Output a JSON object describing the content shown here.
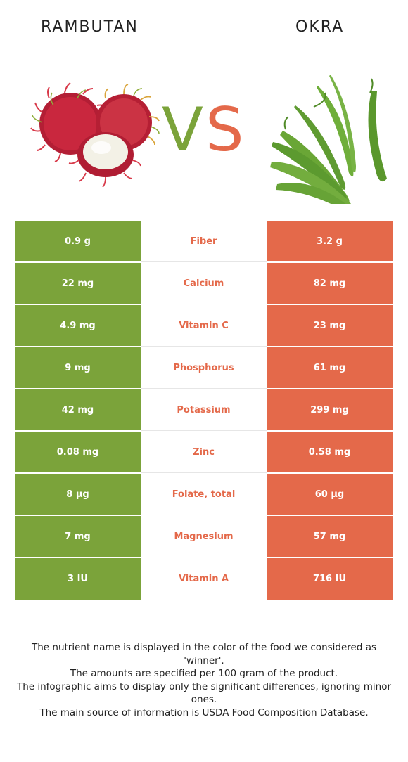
{
  "foods": {
    "left": {
      "name": "RAMBUTAN",
      "color": "#7ba33a"
    },
    "right": {
      "name": "OKRA",
      "color": "#e4694a"
    }
  },
  "vs": {
    "v": "V",
    "s": "S"
  },
  "rows": [
    {
      "nutrient": "Fiber",
      "left": "0.9 g",
      "right": "3.2 g"
    },
    {
      "nutrient": "Calcium",
      "left": "22 mg",
      "right": "82 mg"
    },
    {
      "nutrient": "Vitamin C",
      "left": "4.9 mg",
      "right": "23 mg"
    },
    {
      "nutrient": "Phosphorus",
      "left": "9 mg",
      "right": "61 mg"
    },
    {
      "nutrient": "Potassium",
      "left": "42 mg",
      "right": "299 mg"
    },
    {
      "nutrient": "Zinc",
      "left": "0.08 mg",
      "right": "0.58 mg"
    },
    {
      "nutrient": "Folate, total",
      "left": "8 µg",
      "right": "60 µg"
    },
    {
      "nutrient": "Magnesium",
      "left": "7 mg",
      "right": "57 mg"
    },
    {
      "nutrient": "Vitamin A",
      "left": "3 IU",
      "right": "716 IU"
    }
  ],
  "footnote": [
    "The nutrient name is displayed in the color of the food we considered as 'winner'.",
    "The amounts are specified per 100 gram of the product.",
    "The infographic aims to display only the significant differences, ignoring minor ones.",
    "The main source of information is USDA Food Composition Database."
  ]
}
